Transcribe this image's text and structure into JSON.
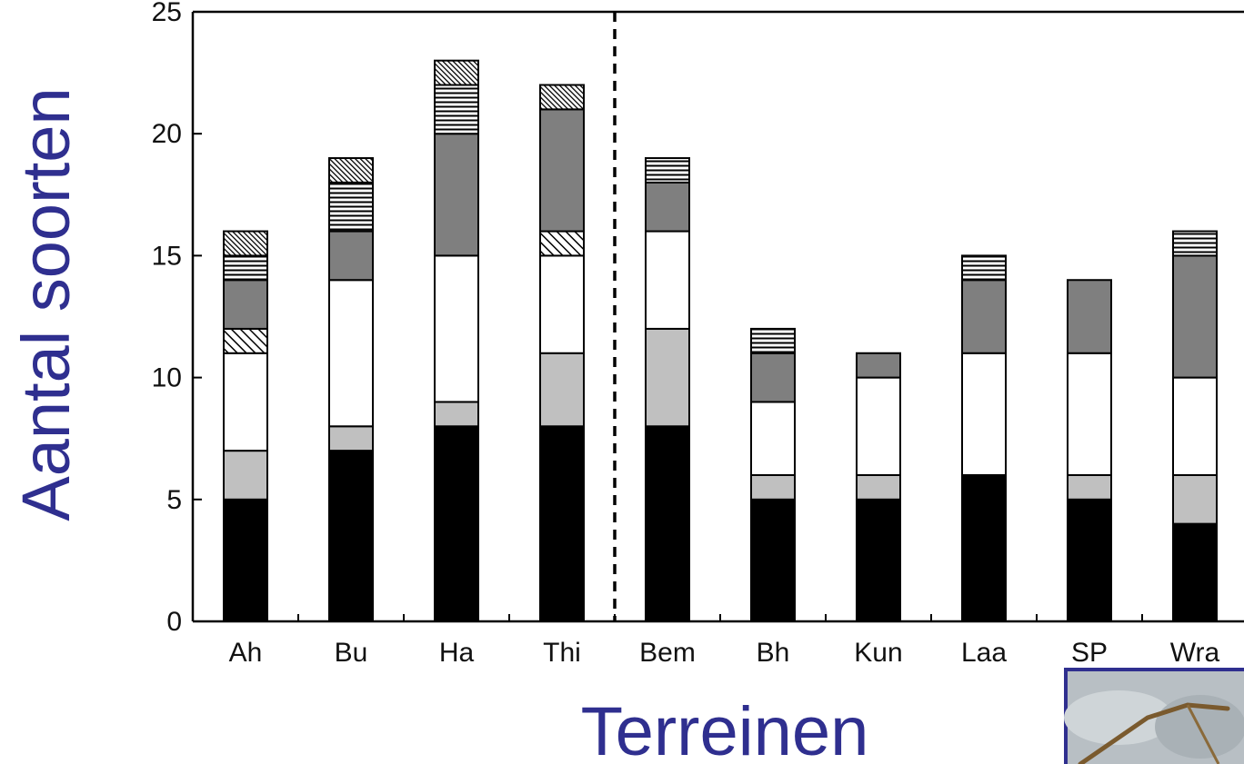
{
  "chart_data": {
    "type": "bar",
    "stacked": true,
    "title": "",
    "xlabel": "Terreinen",
    "ylabel": "Aantal soorten",
    "ylim": [
      0,
      25
    ],
    "yticks": [
      "0",
      "5",
      "10",
      "15",
      "20",
      "25"
    ],
    "categories": [
      "Ah",
      "Bu",
      "Ha",
      "Thi",
      "Bem",
      "Bh",
      "Kun",
      "Laa",
      "SP",
      "Wra"
    ],
    "separator_after_index": 3,
    "grid": false,
    "legend": "none",
    "series": [
      {
        "fill": "black",
        "values": [
          5,
          7,
          8,
          8,
          8,
          5,
          5,
          6,
          5,
          4
        ]
      },
      {
        "fill": "light-gray",
        "values": [
          2,
          1,
          1,
          3,
          4,
          1,
          1,
          0,
          1,
          2
        ]
      },
      {
        "fill": "white",
        "values": [
          4,
          6,
          6,
          4,
          4,
          3,
          4,
          5,
          5,
          4
        ]
      },
      {
        "fill": "diagonal-hatch",
        "values": [
          1,
          0,
          0,
          1,
          0,
          0,
          0,
          0,
          0,
          0
        ]
      },
      {
        "fill": "dark-gray",
        "values": [
          2,
          2,
          5,
          5,
          2,
          2,
          1,
          3,
          3,
          5
        ]
      },
      {
        "fill": "horizontal-lines",
        "values": [
          1,
          2,
          2,
          0,
          1,
          1,
          0,
          1,
          0,
          1
        ]
      },
      {
        "fill": "dense-diagonal-hatch",
        "values": [
          1,
          1,
          1,
          1,
          0,
          0,
          0,
          0,
          0,
          0
        ]
      }
    ],
    "colors": {
      "black": "#000000",
      "light-gray": "#c0c0c0",
      "white": "#ffffff",
      "dark-gray": "#7f7f7f",
      "axis-title": "#2f2f8f"
    }
  }
}
